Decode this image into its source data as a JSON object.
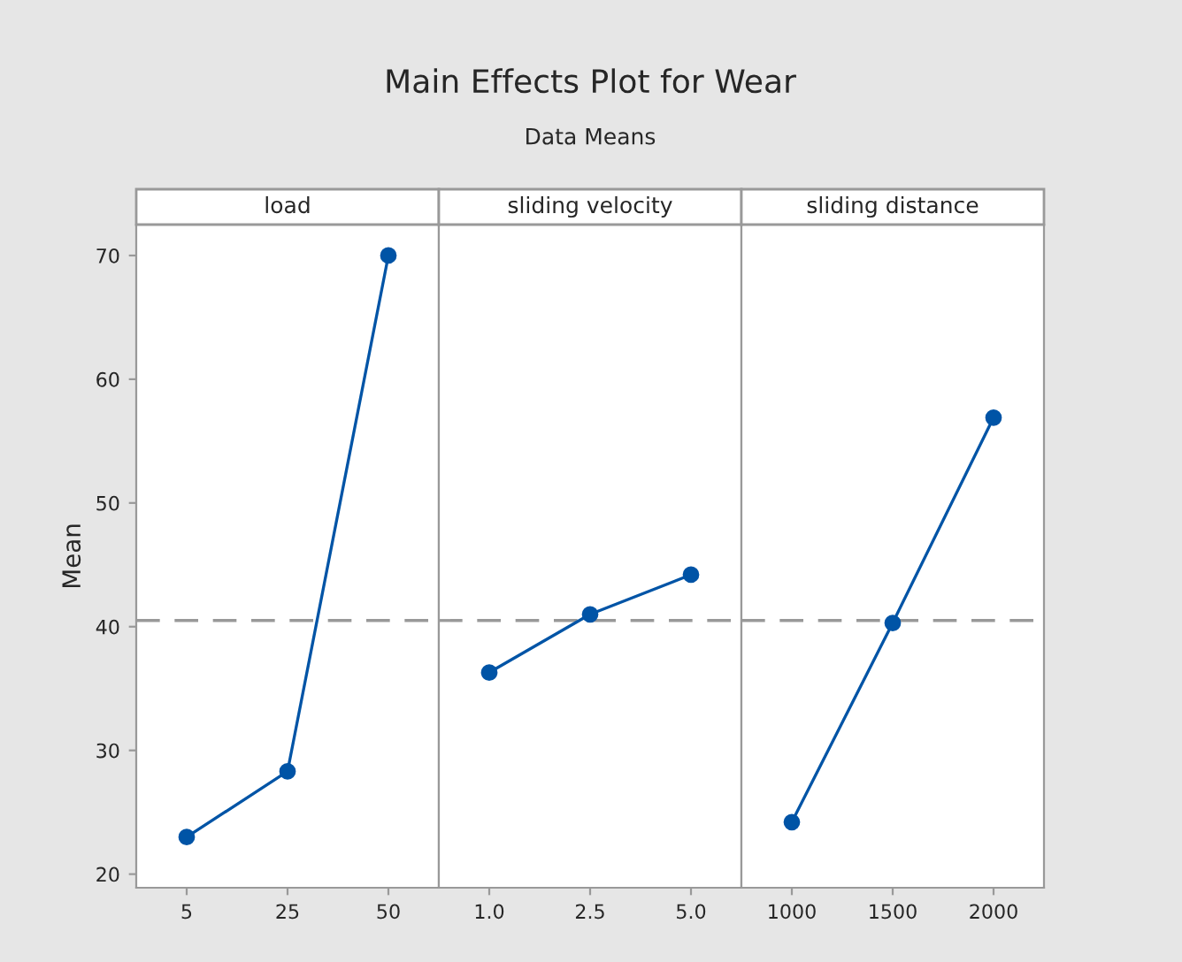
{
  "chart_data": [
    {
      "type": "other",
      "title": "Main Effects Plot for Wear",
      "subtitle": "Data Means"
    },
    {
      "type": "line",
      "xlabel": "load",
      "ylabel": "Mean",
      "categories": [
        "5",
        "25",
        "50"
      ],
      "series": [
        {
          "color": "#0054a6",
          "values": [
            23.0,
            28.3,
            70.0
          ]
        }
      ],
      "ylim": [
        18.9,
        72.5
      ],
      "yticks": [
        20,
        30,
        40,
        50,
        60,
        70
      ],
      "ref_lines": [
        {
          "axis": "y",
          "value": 40.5,
          "color": "#999999",
          "line_style": "dashed"
        }
      ],
      "marker": "circle",
      "grid": false,
      "legend": false
    },
    {
      "type": "line",
      "xlabel": "sliding velocity",
      "categories": [
        "1.0",
        "2.5",
        "5.0"
      ],
      "series": [
        {
          "color": "#0054a6",
          "values": [
            36.3,
            41.0,
            44.2
          ]
        }
      ],
      "ylim": [
        18.9,
        72.5
      ],
      "yticks": [
        20,
        30,
        40,
        50,
        60,
        70
      ],
      "tick_labels": "x",
      "ref_lines": [
        {
          "axis": "y",
          "value": 40.5,
          "color": "#999999",
          "line_style": "dashed"
        }
      ],
      "marker": "circle",
      "grid": false,
      "legend": false
    },
    {
      "type": "line",
      "xlabel": "sliding distance",
      "categories": [
        "1000",
        "1500",
        "2000"
      ],
      "series": [
        {
          "color": "#0054a6",
          "values": [
            24.2,
            40.3,
            56.9
          ]
        }
      ],
      "ylim": [
        18.9,
        72.5
      ],
      "yticks": [
        20,
        30,
        40,
        50,
        60,
        70
      ],
      "tick_labels": "x",
      "ref_lines": [
        {
          "axis": "y",
          "value": 40.5,
          "color": "#999999",
          "line_style": "dashed"
        }
      ],
      "marker": "circle",
      "grid": false,
      "legend": false
    }
  ]
}
